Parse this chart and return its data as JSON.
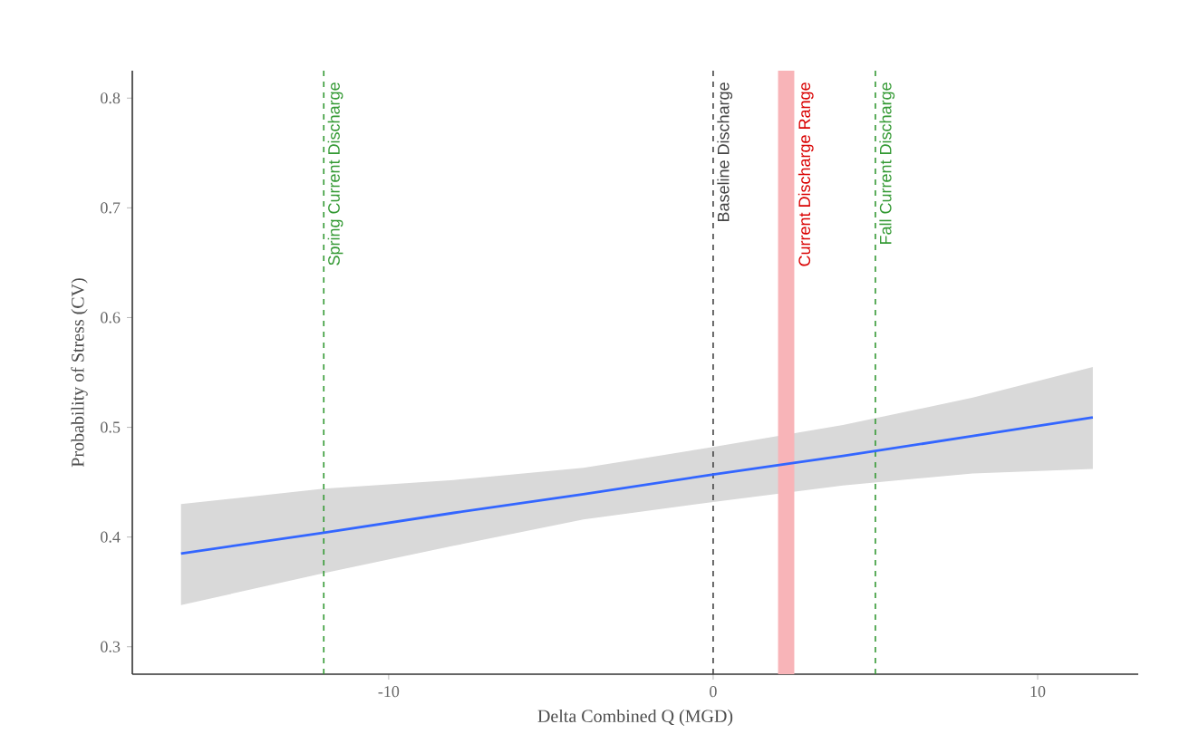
{
  "chart_data": {
    "type": "line",
    "xlabel": "Delta Combined Q (MGD)",
    "ylabel": "Probability of Stress (CV)",
    "x": [
      -16.4,
      -12,
      -8,
      -4,
      0,
      4,
      8,
      11.7
    ],
    "series": [
      {
        "color": "#3366ff",
        "values": [
          0.385,
          0.404,
          0.422,
          0.439,
          0.457,
          0.474,
          0.492,
          0.509
        ],
        "lower": [
          0.338,
          0.367,
          0.392,
          0.416,
          0.432,
          0.447,
          0.458,
          0.462
        ],
        "upper": [
          0.43,
          0.444,
          0.452,
          0.463,
          0.482,
          0.502,
          0.527,
          0.555
        ]
      }
    ],
    "xlim": [
      -17.9,
      13.1
    ],
    "ylim": [
      0.275,
      0.825
    ],
    "xticks": [
      -10,
      0,
      10
    ],
    "yticks": [
      0.3,
      0.4,
      0.5,
      0.6,
      0.7,
      0.8
    ],
    "ref_lines": [
      {
        "axis": "x",
        "value": -12,
        "label": "Spring Current Discharge",
        "color": "#339933",
        "line_style": "dashed"
      },
      {
        "axis": "x",
        "value": 0,
        "label": "Baseline Discharge",
        "color": "#444444",
        "line_style": "dashed"
      },
      {
        "axis": "x",
        "value": 5,
        "label": "Fall Current Discharge",
        "color": "#339933",
        "line_style": "dashed"
      }
    ],
    "bands": [
      {
        "axis": "x",
        "from": 2,
        "to": 2.5,
        "label": "Current Discharge Range",
        "color": "#f8b4b8"
      }
    ]
  }
}
